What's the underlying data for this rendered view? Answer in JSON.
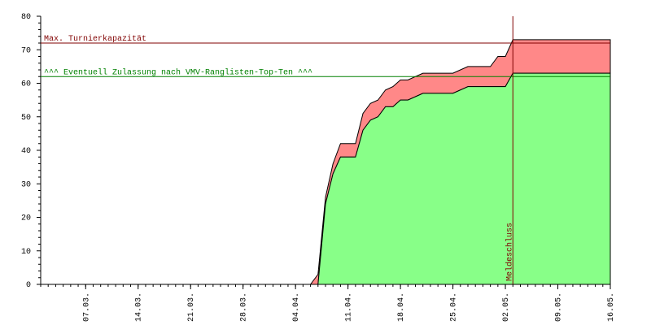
{
  "chart_data": {
    "type": "stacked-area",
    "x": [
      "01.03.",
      "05.04.",
      "06.04.",
      "07.04.",
      "08.04.",
      "09.04.",
      "10.04.",
      "12.04.",
      "13.04.",
      "14.04.",
      "15.04.",
      "16.04.",
      "17.04.",
      "18.04.",
      "19.04.",
      "20.04.",
      "21.04.",
      "25.04.",
      "27.04.",
      "30.04.",
      "01.05.",
      "02.05.",
      "03.05.",
      "16.05."
    ],
    "series": [
      {
        "color": "#88ff88",
        "values": [
          0,
          0,
          0,
          0,
          24,
          33,
          38,
          38,
          46,
          49,
          50,
          53,
          53,
          55,
          55,
          56,
          57,
          57,
          59,
          59,
          59,
          59,
          63,
          63
        ]
      },
      {
        "color": "#ff8888",
        "values": [
          0,
          0,
          0,
          3,
          2,
          3,
          4,
          4,
          5,
          5,
          5,
          5,
          6,
          6,
          6,
          6,
          6,
          6,
          6,
          6,
          9,
          9,
          10,
          10
        ]
      }
    ],
    "xlim": [
      "01.03.",
      "16.05."
    ],
    "xticks": [
      "07.03.",
      "14.03.",
      "21.03.",
      "28.03.",
      "04.04.",
      "11.04.",
      "18.04.",
      "25.04.",
      "02.05.",
      "09.05.",
      "16.05."
    ],
    "ylim": [
      0,
      80
    ],
    "yticks": [
      0,
      10,
      20,
      30,
      40,
      50,
      60,
      70,
      80
    ],
    "hlines": [
      {
        "value": 72,
        "label": "Max. Turnierkapazität",
        "color": "#800000"
      },
      {
        "value": 62,
        "label": "^^^ Eventuell Zulassung nach VMV-Ranglisten-Top-Ten ^^^",
        "color": "#008000"
      }
    ],
    "vline": {
      "x": "03.05.",
      "label": "Meldeschluss",
      "color": "#800000"
    }
  }
}
